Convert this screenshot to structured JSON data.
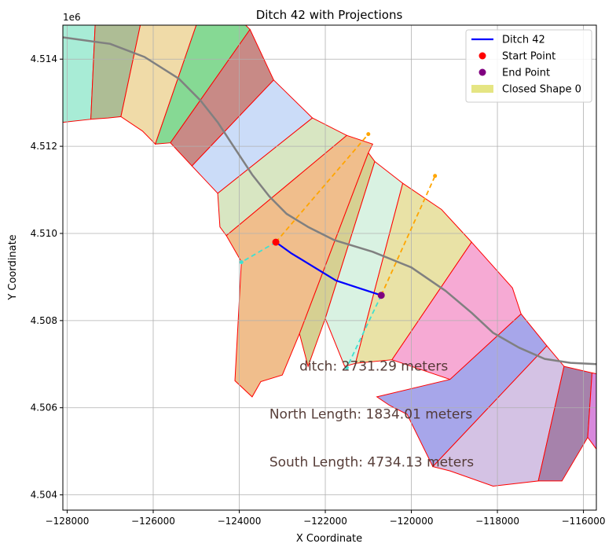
{
  "chart_data": {
    "type": "scatter",
    "title": "Ditch 42 with Projections",
    "xlabel": "X Coordinate",
    "ylabel": "Y Coordinate",
    "y_offset_label": "1e6",
    "xlim": [
      -128100,
      -115700
    ],
    "ylim": [
      4.50365,
      4.51478
    ],
    "grid": true,
    "legend_position": "upper right",
    "xticks": [
      -128000,
      -126000,
      -124000,
      -122000,
      -120000,
      -118000,
      -116000
    ],
    "xtick_labels": [
      "−128000",
      "−126000",
      "−124000",
      "−122000",
      "−120000",
      "−118000",
      "−116000"
    ],
    "yticks": [
      4.504,
      4.506,
      4.508,
      4.51,
      4.512,
      4.514
    ],
    "ytick_labels": [
      "4.504",
      "4.506",
      "4.508",
      "4.510",
      "4.512",
      "4.514"
    ],
    "legend": [
      {
        "label": "Ditch 42",
        "kind": "line",
        "color": "#0000ff"
      },
      {
        "label": "Start Point",
        "kind": "marker",
        "color": "#ff0000"
      },
      {
        "label": "End Point",
        "kind": "marker",
        "color": "#800080"
      },
      {
        "label": "Closed Shape 0",
        "kind": "patch",
        "color": "#dcdc5a"
      }
    ],
    "annotations": [
      {
        "text": "ditch: 2731.29 meters",
        "x": -122600,
        "y": 4.50685
      },
      {
        "text": "North Length: 1834.01 meters",
        "x": -123300,
        "y": 4.50575
      },
      {
        "text": "South Length: 4734.13 meters",
        "x": -123300,
        "y": 4.50465
      }
    ],
    "ditch": {
      "name": "Ditch 42",
      "color": "#0000ff",
      "points": [
        [
          -123150,
          4.5098
        ],
        [
          -122800,
          4.50955
        ],
        [
          -122350,
          4.50928
        ],
        [
          -121750,
          4.50892
        ],
        [
          -121200,
          4.50874
        ],
        [
          -120700,
          4.50858
        ]
      ]
    },
    "start_point": {
      "x": -123150,
      "y": 4.5098,
      "color": "#ff0000"
    },
    "end_point": {
      "x": -120700,
      "y": 4.50858,
      "color": "#800080"
    },
    "projections": [
      {
        "color": "#ffa500",
        "points": [
          [
            -123150,
            4.5098
          ],
          [
            -121000,
            4.51228
          ]
        ]
      },
      {
        "color": "#40e0d0",
        "points": [
          [
            -123150,
            4.5098
          ],
          [
            -123950,
            4.50934
          ]
        ]
      },
      {
        "color": "#ffa500",
        "points": [
          [
            -120700,
            4.50858
          ],
          [
            -119450,
            4.51132
          ]
        ]
      },
      {
        "color": "#40e0d0",
        "points": [
          [
            -120700,
            4.50858
          ],
          [
            -121500,
            4.50692
          ]
        ]
      }
    ],
    "gray_line": {
      "color": "#808080",
      "points": [
        [
          -128100,
          4.5145
        ],
        [
          -127000,
          4.51435
        ],
        [
          -126200,
          4.51405
        ],
        [
          -125400,
          4.51355
        ],
        [
          -124900,
          4.51305
        ],
        [
          -124500,
          4.51255
        ],
        [
          -124100,
          4.51195
        ],
        [
          -123700,
          4.51135
        ],
        [
          -123300,
          4.51085
        ],
        [
          -122900,
          4.51045
        ],
        [
          -122400,
          4.51015
        ],
        [
          -121800,
          4.50985
        ],
        [
          -120900,
          4.50958
        ],
        [
          -120000,
          4.50922
        ],
        [
          -119200,
          4.50868
        ],
        [
          -118600,
          4.50818
        ],
        [
          -118100,
          4.50772
        ],
        [
          -117500,
          4.50738
        ],
        [
          -116900,
          4.50712
        ],
        [
          -116300,
          4.50703
        ],
        [
          -115700,
          4.507
        ]
      ]
    },
    "regions": [
      {
        "fill": "#a8ecd6",
        "points": [
          [
            -128100,
            4.51478
          ],
          [
            -127350,
            4.51478
          ],
          [
            -127450,
            4.51262
          ],
          [
            -128100,
            4.51255
          ]
        ]
      },
      {
        "fill": "#aebd95",
        "points": [
          [
            -127350,
            4.51478
          ],
          [
            -126300,
            4.51478
          ],
          [
            -126750,
            4.51268
          ],
          [
            -127050,
            4.51265
          ],
          [
            -127450,
            4.51262
          ]
        ]
      },
      {
        "fill": "#f0dba8",
        "points": [
          [
            -126300,
            4.51478
          ],
          [
            -125000,
            4.51478
          ],
          [
            -125950,
            4.51205
          ],
          [
            -126250,
            4.51235
          ],
          [
            -126750,
            4.51268
          ]
        ]
      },
      {
        "fill": "#86d994",
        "points": [
          [
            -125000,
            4.51478
          ],
          [
            -123850,
            4.51478
          ],
          [
            -123750,
            4.51468
          ],
          [
            -125600,
            4.51208
          ],
          [
            -125950,
            4.51205
          ]
        ]
      },
      {
        "fill": "#c88a86",
        "points": [
          [
            -123750,
            4.51468
          ],
          [
            -123200,
            4.51352
          ],
          [
            -125100,
            4.51155
          ],
          [
            -125600,
            4.51208
          ]
        ]
      },
      {
        "fill": "#cbdcf8",
        "points": [
          [
            -123200,
            4.51352
          ],
          [
            -122300,
            4.51265
          ],
          [
            -124500,
            4.51092
          ],
          [
            -125100,
            4.51155
          ]
        ]
      },
      {
        "fill": "#d8e6c2",
        "points": [
          [
            -122300,
            4.51265
          ],
          [
            -121500,
            4.51225
          ],
          [
            -124300,
            4.50995
          ],
          [
            -124450,
            4.51015
          ],
          [
            -124500,
            4.51092
          ]
        ]
      },
      {
        "fill": "#f0be8c",
        "points": [
          [
            -121500,
            4.51225
          ],
          [
            -120900,
            4.51205
          ],
          [
            -121000,
            4.51185
          ],
          [
            -122600,
            4.5077
          ],
          [
            -123000,
            4.50675
          ],
          [
            -123500,
            4.5066
          ],
          [
            -123700,
            4.50625
          ],
          [
            -124100,
            4.50662
          ],
          [
            -123950,
            4.50935
          ],
          [
            -124300,
            4.50995
          ]
        ]
      },
      {
        "fill": "#d6d092",
        "points": [
          [
            -121000,
            4.51185
          ],
          [
            -120850,
            4.51165
          ],
          [
            -122000,
            4.50805
          ],
          [
            -122400,
            4.50695
          ],
          [
            -122600,
            4.5077
          ]
        ]
      },
      {
        "fill": "#d9f2e2",
        "points": [
          [
            -120850,
            4.51165
          ],
          [
            -120200,
            4.51115
          ],
          [
            -121300,
            4.50702
          ],
          [
            -121550,
            4.50695
          ],
          [
            -122000,
            4.50805
          ]
        ]
      },
      {
        "fill": "#e9e2a6",
        "points": [
          [
            -120200,
            4.51115
          ],
          [
            -119300,
            4.51055
          ],
          [
            -118600,
            4.5098
          ],
          [
            -120450,
            4.5071
          ],
          [
            -121300,
            4.50702
          ]
        ]
      },
      {
        "fill": "#f6aad4",
        "points": [
          [
            -118600,
            4.5098
          ],
          [
            -117650,
            4.50875
          ],
          [
            -117450,
            4.50815
          ],
          [
            -119100,
            4.50665
          ],
          [
            -120450,
            4.5071
          ]
        ]
      },
      {
        "fill": "#a7a6ea",
        "points": [
          [
            -117450,
            4.50815
          ],
          [
            -116850,
            4.50742
          ],
          [
            -119500,
            4.50465
          ],
          [
            -120100,
            4.50585
          ],
          [
            -120500,
            4.50605
          ],
          [
            -120800,
            4.50625
          ],
          [
            -119100,
            4.50665
          ]
        ]
      },
      {
        "fill": "#d4c2e4",
        "points": [
          [
            -116850,
            4.50742
          ],
          [
            -116450,
            4.50695
          ],
          [
            -117050,
            4.50432
          ],
          [
            -118100,
            4.5042
          ],
          [
            -119100,
            4.50455
          ],
          [
            -119500,
            4.50465
          ]
        ]
      },
      {
        "fill": "#a682ab",
        "points": [
          [
            -116450,
            4.50695
          ],
          [
            -115800,
            4.5068
          ],
          [
            -115900,
            4.50532
          ],
          [
            -116500,
            4.50432
          ],
          [
            -117050,
            4.50432
          ]
        ]
      },
      {
        "fill": "#d788dc",
        "points": [
          [
            -115800,
            4.5068
          ],
          [
            -115700,
            4.50678
          ],
          [
            -115700,
            4.50505
          ],
          [
            -115900,
            4.50532
          ]
        ]
      }
    ]
  }
}
